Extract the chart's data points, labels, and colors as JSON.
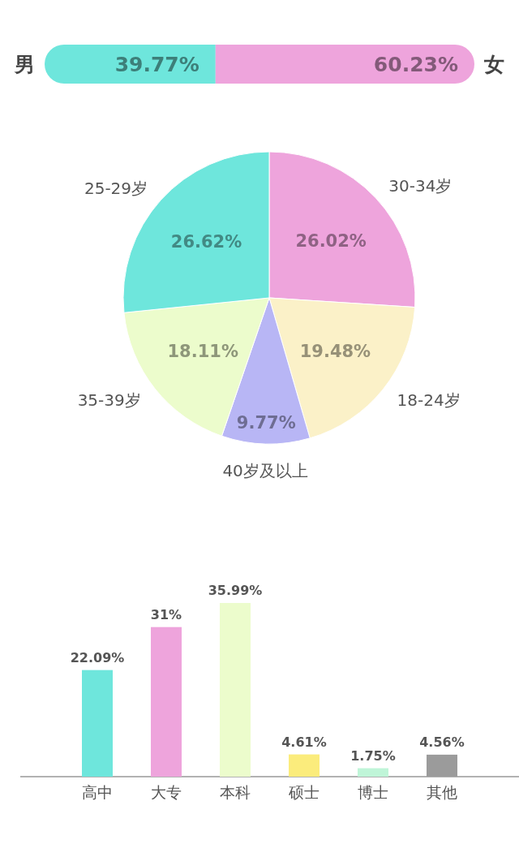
{
  "chart_data": [
    {
      "type": "bar",
      "orientation": "horizontal",
      "stacked": true,
      "categories": [
        null
      ],
      "series": [
        {
          "name": "男",
          "color": "#6ee6dc",
          "values": [
            39.77
          ],
          "value_labels": [
            "39.77%"
          ]
        },
        {
          "name": "女",
          "color": "#eea4dc",
          "values": [
            60.23
          ],
          "value_labels": [
            "60.23%"
          ]
        }
      ]
    },
    {
      "type": "pie",
      "categories": [
        "30-34岁",
        "18-24岁",
        "40岁及以上",
        "35-39岁",
        "25-29岁"
      ],
      "values": [
        26.02,
        19.48,
        9.77,
        18.11,
        26.62
      ],
      "colors": [
        "#eea4dc",
        "#fbf1c8",
        "#b8b6f5",
        "#ecfccc",
        "#6ee6dc"
      ],
      "value_labels": [
        "26.02%",
        "19.48%",
        "9.77%",
        "18.11%",
        "26.62%"
      ]
    },
    {
      "type": "bar",
      "categories": [
        "高中",
        "大专",
        "本科",
        "硕士",
        "博士",
        "其他"
      ],
      "values": [
        22.09,
        31,
        35.99,
        4.61,
        1.75,
        4.56
      ],
      "colors": [
        "#6ee6dc",
        "#eea4dc",
        "#ecfccc",
        "#fbec7c",
        "#bff5d8",
        "#9b9b9b"
      ],
      "value_labels": [
        "22.09%",
        "31%",
        "35.99%",
        "4.61%",
        "1.75%",
        "4.56%"
      ]
    }
  ]
}
